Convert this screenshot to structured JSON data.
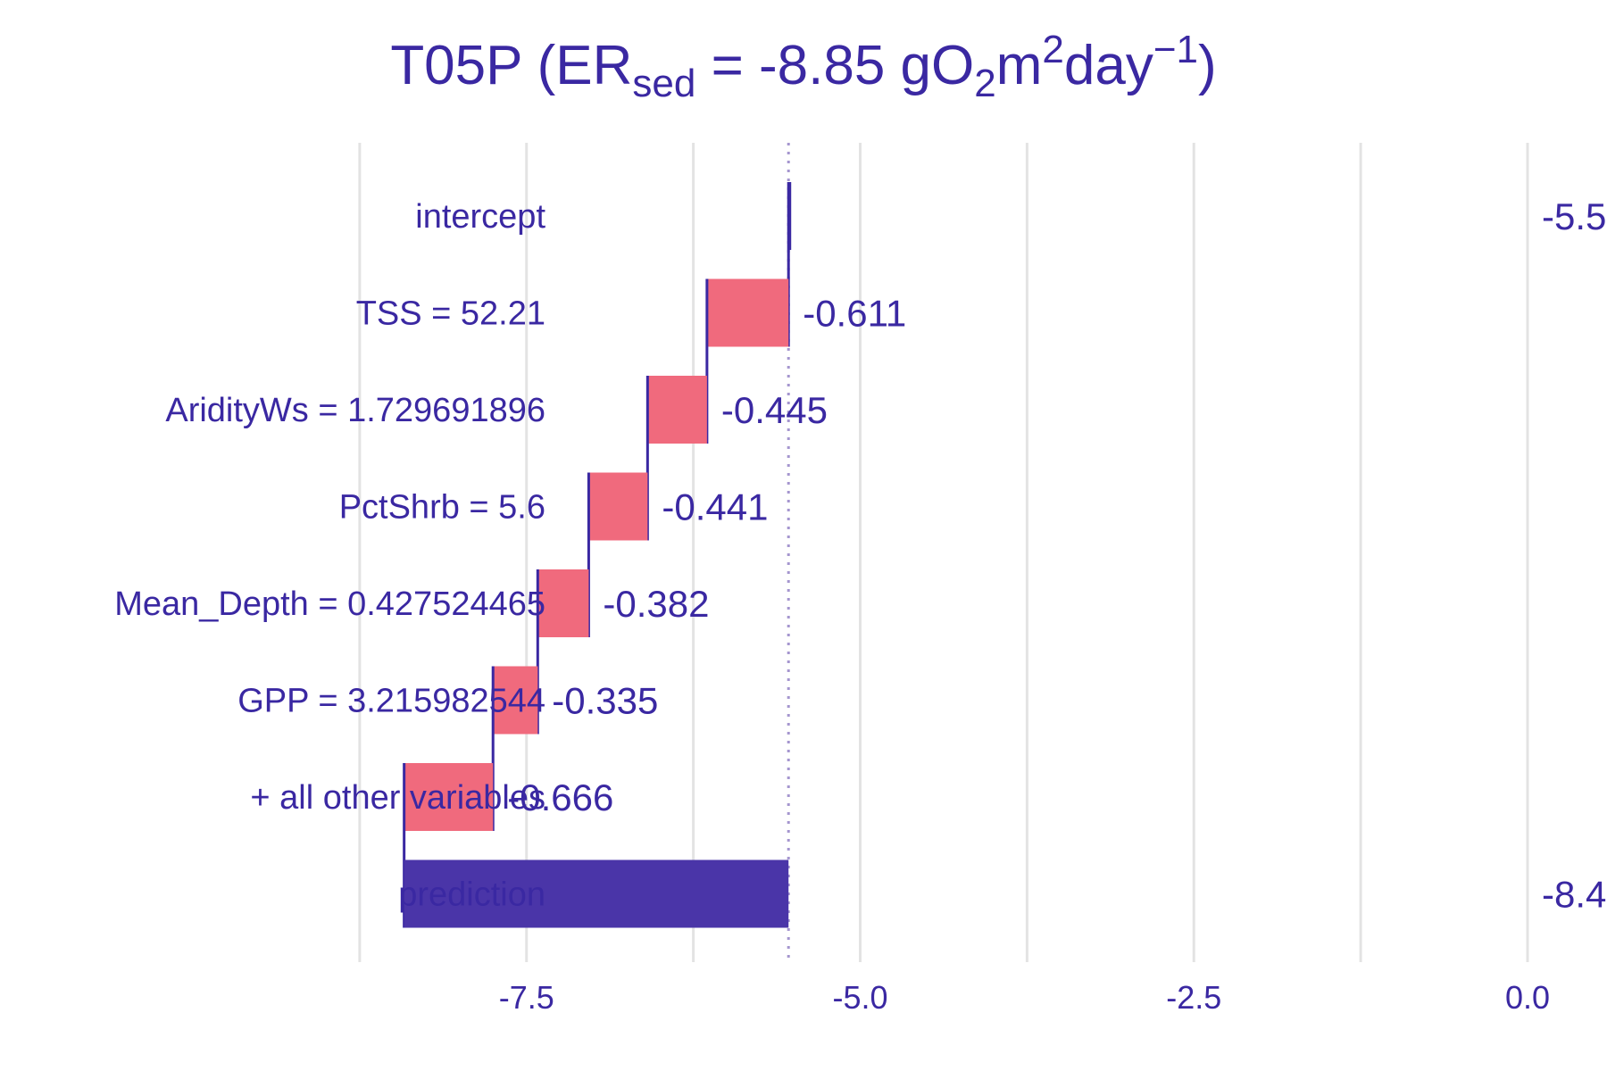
{
  "title": {
    "t1": "T05P (ER",
    "t2": "sed",
    "t3": " = -8.85 gO",
    "t4": "2",
    "t5": "m",
    "t6": "2",
    "t7": "day",
    "t8": "−1",
    "t9": ")"
  },
  "chart_data": {
    "type": "bar",
    "subtype": "waterfall",
    "orientation": "horizontal",
    "categories": [
      "intercept",
      "TSS = 52.21",
      "AridityWs = 1.729691896",
      "PctShrb = 5.6",
      "Mean_Depth = 0.427524465",
      "GPP = 3.215982544",
      "+ all other variables",
      "prediction"
    ],
    "contributions": [
      -5.537,
      -0.611,
      -0.445,
      -0.441,
      -0.382,
      -0.335,
      -0.666,
      -8.417
    ],
    "value_labels": [
      "-5.5",
      "-0.611",
      "-0.445",
      "-0.441",
      "-0.382",
      "-0.335",
      "-0.666",
      "-8.4"
    ],
    "baseline": -5.537,
    "prediction": -8.417,
    "xlim": [
      -8.85,
      0.0
    ],
    "xticks": [
      -7.5,
      -5.0,
      -2.5,
      0.0
    ],
    "xtick_labels": [
      "-7.5",
      "-5.0",
      "-2.5",
      "0.0"
    ],
    "grid": true,
    "xlabel": "",
    "ylabel": "",
    "colors": {
      "text": "#3a28a2",
      "negative": "#f06a7d",
      "prediction": "#4a35a8",
      "connector": "#3a28a2",
      "grid": "#e3e3e3",
      "baseline_line": "#a596cf"
    }
  }
}
